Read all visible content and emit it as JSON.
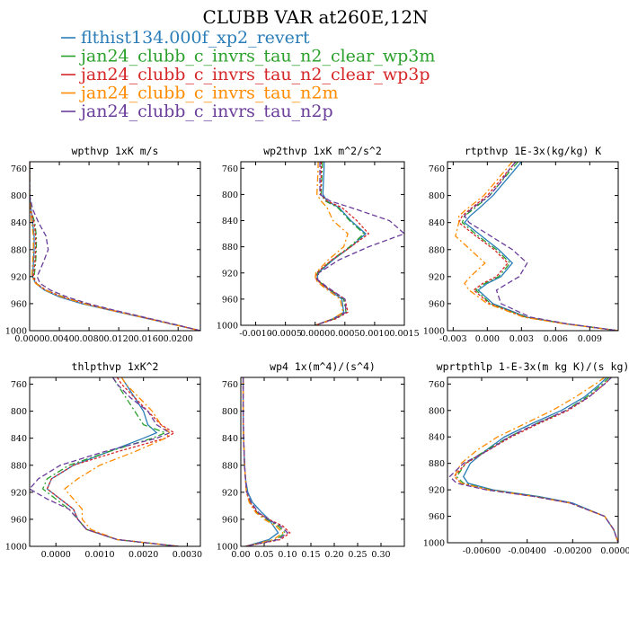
{
  "title": "CLUBB VAR at260E,12N",
  "legend": [
    {
      "name": "flthist134.000f_xp2_revert",
      "color": "#2a7db8",
      "dash": "solid"
    },
    {
      "name": "jan24_clubb_c_invrs_tau_n2_clear_wp3m",
      "color": "#2ca02c",
      "dash": "dashdot"
    },
    {
      "name": "jan24_clubb_c_invrs_tau_n2_clear_wp3p",
      "color": "#d62728",
      "dash": "dot"
    },
    {
      "name": "jan24_clubb_c_invrs_tau_n2m",
      "color": "#ff8c00",
      "dash": "dashdot"
    },
    {
      "name": "jan24_clubb_c_invrs_tau_n2p",
      "color": "#6a3d9a",
      "dash": "dash"
    }
  ],
  "chart_data": [
    {
      "type": "line",
      "title": "wpthvp  1xK m/s",
      "xlim": [
        0,
        0.023
      ],
      "ylim": [
        1000,
        750
      ],
      "y_reversed": true,
      "xticks": [
        0,
        0.004,
        0.008,
        0.012,
        0.016,
        0.02
      ],
      "xtick_labels": [
        "0.0000",
        "0.0040",
        "0.0080",
        "0.0120",
        "0.0160",
        "0.0200"
      ],
      "yticks": [
        760,
        800,
        840,
        880,
        920,
        960,
        1000
      ],
      "ytick_labels": [
        "760",
        "800",
        "840",
        "880",
        "920",
        "960",
        "1000"
      ],
      "y": [
        750,
        760,
        780,
        800,
        820,
        840,
        860,
        880,
        900,
        920,
        930,
        940,
        950,
        960,
        970,
        980,
        990,
        1000
      ],
      "series": [
        {
          "values": [
            0.0,
            0.0,
            0.0,
            0.0,
            0.0002,
            0.0004,
            0.0006,
            0.0006,
            0.0005,
            0.0004,
            0.0008,
            0.002,
            0.004,
            0.007,
            0.011,
            0.015,
            0.019,
            0.023
          ]
        },
        {
          "values": [
            0.0,
            0.0,
            0.0,
            0.0,
            0.0001,
            0.0007,
            0.0009,
            0.0009,
            0.0008,
            0.0006,
            0.0009,
            0.0022,
            0.0045,
            0.0075,
            0.0112,
            0.0152,
            0.0192,
            0.023
          ]
        },
        {
          "values": [
            0.0,
            0.0,
            0.0,
            0.0,
            0.0001,
            0.0006,
            0.0008,
            0.0008,
            0.0007,
            0.0005,
            0.0009,
            0.0022,
            0.0044,
            0.0074,
            0.0112,
            0.0152,
            0.0191,
            0.023
          ]
        },
        {
          "values": [
            0.0,
            0.0,
            0.0,
            0.0,
            0.0001,
            0.0003,
            0.0005,
            0.0005,
            0.0004,
            0.0003,
            0.0008,
            0.0021,
            0.0043,
            0.0073,
            0.0111,
            0.0151,
            0.019,
            0.023
          ]
        },
        {
          "values": [
            0.0,
            0.0,
            0.0,
            0.0,
            0.0004,
            0.0012,
            0.0022,
            0.0025,
            0.0018,
            0.001,
            0.0014,
            0.0028,
            0.005,
            0.0079,
            0.0115,
            0.0154,
            0.0193,
            0.023
          ]
        }
      ]
    },
    {
      "type": "line",
      "title": "wp2thvp  1xK m^2/s^2",
      "xlim": [
        -0.00125,
        0.0015
      ],
      "ylim": [
        1000,
        750
      ],
      "y_reversed": true,
      "xticks": [
        -0.001,
        -0.0005,
        0,
        0.0005,
        0.001,
        0.0015
      ],
      "xtick_labels": [
        "-0.0010",
        "-0.0005",
        "0.0000",
        "0.0005",
        "0.0010",
        "0.0015"
      ],
      "yticks": [
        760,
        800,
        840,
        880,
        920,
        960,
        1000
      ],
      "ytick_labels": [
        "760",
        "800",
        "840",
        "880",
        "920",
        "960",
        "1000"
      ],
      "y": [
        750,
        760,
        780,
        800,
        810,
        820,
        840,
        860,
        880,
        900,
        920,
        930,
        940,
        960,
        980,
        990,
        1000
      ],
      "series": [
        {
          "values": [
            0.00015,
            0.00015,
            0.00014,
            0.00013,
            0.0002,
            0.0004,
            0.0006,
            0.00085,
            0.0006,
            0.0003,
            5e-05,
            3e-05,
            0.00015,
            0.00045,
            0.00048,
            0.0003,
            0.0
          ]
        },
        {
          "values": [
            0.00012,
            0.00012,
            0.00011,
            0.0001,
            0.00017,
            0.00038,
            0.00058,
            0.00082,
            0.00058,
            0.00028,
            4e-05,
            3e-05,
            0.00016,
            0.00048,
            0.00052,
            0.00033,
            0.0
          ]
        },
        {
          "values": [
            0.0001,
            0.0001,
            0.0001,
            9e-05,
            0.0002,
            0.00045,
            0.0007,
            0.0009,
            0.0006,
            0.00028,
            2e-05,
            2e-05,
            0.00015,
            0.0005,
            0.00055,
            0.00035,
            0.0
          ]
        },
        {
          "values": [
            5e-05,
            5e-05,
            4e-05,
            3e-05,
            0.0001,
            0.0002,
            0.0003,
            0.00055,
            0.00048,
            0.00022,
            1e-05,
            0.0,
            0.00012,
            0.00042,
            0.00047,
            0.0003,
            0.0
          ]
        },
        {
          "values": [
            8e-05,
            8e-05,
            8e-05,
            8e-05,
            0.00025,
            0.0006,
            0.00125,
            0.0015,
            0.0009,
            0.0004,
            6e-05,
            4e-05,
            0.00018,
            0.0005,
            0.00052,
            0.00032,
            0.0
          ]
        }
      ]
    },
    {
      "type": "line",
      "title": "rtpthvp  1E-3x(kg/kg) K",
      "xlim": [
        -0.0035,
        0.0115
      ],
      "ylim": [
        1000,
        750
      ],
      "y_reversed": true,
      "xticks": [
        -0.003,
        0,
        0.003,
        0.006,
        0.009
      ],
      "xtick_labels": [
        "-0.003",
        "0.000",
        "0.003",
        "0.006",
        "0.009"
      ],
      "yticks": [
        760,
        800,
        840,
        880,
        920,
        960,
        1000
      ],
      "ytick_labels": [
        "760",
        "800",
        "840",
        "880",
        "920",
        "960",
        "1000"
      ],
      "y": [
        750,
        760,
        780,
        800,
        820,
        830,
        840,
        860,
        880,
        900,
        920,
        930,
        940,
        960,
        980,
        990,
        1000
      ],
      "series": [
        {
          "values": [
            0.003,
            0.0025,
            0.0015,
            0.0005,
            -0.0008,
            -0.0015,
            -0.002,
            -0.0005,
            0.001,
            0.0022,
            0.0012,
            0.0,
            -0.0008,
            0.0005,
            0.0035,
            0.007,
            0.0115
          ]
        },
        {
          "values": [
            0.0027,
            0.0022,
            0.0012,
            0.0002,
            -0.0012,
            -0.002,
            -0.0022,
            -0.0008,
            0.0008,
            0.002,
            0.001,
            -0.0002,
            -0.001,
            0.0003,
            0.0034,
            0.007,
            0.0115
          ]
        },
        {
          "values": [
            0.0025,
            0.002,
            0.001,
            0.0,
            -0.0015,
            -0.0022,
            -0.0025,
            -0.001,
            0.0006,
            0.0018,
            0.0008,
            -0.0004,
            -0.0012,
            0.0002,
            0.0033,
            0.0069,
            0.0115
          ]
        },
        {
          "values": [
            0.0022,
            0.0017,
            0.0007,
            -0.0003,
            -0.0018,
            -0.0025,
            -0.0025,
            -0.0028,
            -0.0015,
            -0.0002,
            -0.0015,
            -0.002,
            -0.0016,
            0.0,
            0.0032,
            0.0068,
            0.0115
          ]
        },
        {
          "values": [
            0.0025,
            0.002,
            0.0012,
            0.0002,
            -0.0014,
            -0.002,
            -0.0016,
            0.0003,
            0.0022,
            0.0035,
            0.0028,
            0.0018,
            0.0008,
            0.0012,
            0.0038,
            0.0071,
            0.0115
          ]
        }
      ]
    },
    {
      "type": "line",
      "title": "thlpthvp  1xK^2",
      "xlim": [
        -0.0006,
        0.0033
      ],
      "ylim": [
        1000,
        750
      ],
      "y_reversed": true,
      "xticks": [
        0,
        0.001,
        0.002,
        0.003
      ],
      "xtick_labels": [
        "0.0000",
        "0.0010",
        "0.0020",
        "0.0030"
      ],
      "yticks": [
        760,
        800,
        840,
        880,
        920,
        960,
        1000
      ],
      "ytick_labels": [
        "760",
        "800",
        "840",
        "880",
        "920",
        "960",
        "1000"
      ],
      "y": [
        750,
        760,
        780,
        800,
        820,
        832,
        840,
        860,
        880,
        900,
        915,
        930,
        945,
        960,
        975,
        990,
        1000
      ],
      "series": [
        {
          "values": [
            0.0015,
            0.0016,
            0.0018,
            0.002,
            0.0021,
            0.0023,
            0.002,
            0.0012,
            0.0004,
            -0.0001,
            -0.0002,
            0.0001,
            0.0004,
            0.0005,
            0.0007,
            0.0014,
            0.0028
          ]
        },
        {
          "values": [
            0.0013,
            0.0014,
            0.0016,
            0.0018,
            0.002,
            0.0025,
            0.0022,
            0.0012,
            0.0003,
            -0.0002,
            -0.0003,
            0.0,
            0.0003,
            0.0005,
            0.0007,
            0.0014,
            0.0028
          ]
        },
        {
          "values": [
            0.0014,
            0.0015,
            0.0018,
            0.0021,
            0.0024,
            0.0027,
            0.0025,
            0.0014,
            0.0004,
            -0.0001,
            -0.0002,
            0.0001,
            0.0004,
            0.0005,
            0.0007,
            0.0014,
            0.0028
          ]
        },
        {
          "values": [
            0.0015,
            0.0016,
            0.0019,
            0.0022,
            0.0024,
            0.0026,
            0.0025,
            0.0018,
            0.001,
            0.0005,
            0.0002,
            0.0004,
            0.0006,
            0.0006,
            0.0008,
            0.0014,
            0.0028
          ]
        },
        {
          "values": [
            0.0013,
            0.0014,
            0.0017,
            0.0021,
            0.0023,
            0.0026,
            0.0023,
            0.0011,
            0.0001,
            -0.0004,
            -0.0006,
            -0.0002,
            0.0003,
            0.0005,
            0.0007,
            0.0014,
            0.0028
          ]
        }
      ]
    },
    {
      "type": "line",
      "title": "wp4  1x(m^4)/(s^4)",
      "xlim": [
        0,
        0.35
      ],
      "ylim": [
        1000,
        750
      ],
      "y_reversed": true,
      "xticks": [
        0,
        0.05,
        0.1,
        0.15,
        0.2,
        0.25,
        0.3
      ],
      "xtick_labels": [
        "0.00",
        "0.05",
        "0.10",
        "0.15",
        "0.20",
        "0.25",
        "0.30"
      ],
      "yticks": [
        760,
        800,
        840,
        880,
        920,
        960,
        1000
      ],
      "ytick_labels": [
        "760",
        "800",
        "840",
        "880",
        "920",
        "960",
        "1000"
      ],
      "y": [
        750,
        760,
        800,
        840,
        880,
        900,
        920,
        935,
        950,
        960,
        970,
        980,
        990,
        1000
      ],
      "series": [
        {
          "values": [
            0.005,
            0.005,
            0.005,
            0.006,
            0.008,
            0.01,
            0.015,
            0.025,
            0.045,
            0.06,
            0.07,
            0.08,
            0.06,
            0.01
          ]
        },
        {
          "values": [
            0.005,
            0.005,
            0.005,
            0.006,
            0.008,
            0.01,
            0.012,
            0.02,
            0.035,
            0.055,
            0.08,
            0.095,
            0.075,
            0.01
          ]
        },
        {
          "values": [
            0.005,
            0.005,
            0.005,
            0.006,
            0.008,
            0.01,
            0.012,
            0.02,
            0.035,
            0.06,
            0.09,
            0.105,
            0.085,
            0.01
          ]
        },
        {
          "values": [
            0.005,
            0.005,
            0.005,
            0.006,
            0.008,
            0.01,
            0.012,
            0.018,
            0.032,
            0.05,
            0.075,
            0.09,
            0.07,
            0.01
          ]
        },
        {
          "values": [
            0.005,
            0.005,
            0.005,
            0.006,
            0.008,
            0.01,
            0.013,
            0.022,
            0.038,
            0.058,
            0.085,
            0.1,
            0.08,
            0.01
          ]
        }
      ]
    },
    {
      "type": "line",
      "title": "wprtpthlp  1-E-3x(m kg K)/(s kg)",
      "xlim": [
        -0.0075,
        0.0
      ],
      "ylim": [
        1000,
        750
      ],
      "y_reversed": true,
      "xticks": [
        -0.006,
        -0.004,
        -0.002,
        0
      ],
      "xtick_labels": [
        "-0.00600",
        "-0.00400",
        "-0.00200",
        "0.00000"
      ],
      "yticks": [
        760,
        800,
        840,
        880,
        920,
        960,
        1000
      ],
      "ytick_labels": [
        "760",
        "800",
        "840",
        "880",
        "920",
        "960",
        "1000"
      ],
      "y": [
        750,
        760,
        780,
        800,
        820,
        840,
        860,
        880,
        900,
        910,
        920,
        930,
        940,
        960,
        980,
        1000
      ],
      "series": [
        {
          "values": [
            -0.0005,
            -0.0008,
            -0.0015,
            -0.0025,
            -0.0038,
            -0.005,
            -0.0058,
            -0.0065,
            -0.0068,
            -0.0066,
            -0.0055,
            -0.0035,
            -0.002,
            -0.0006,
            -0.0002,
            0.0
          ]
        },
        {
          "values": [
            -0.0004,
            -0.0007,
            -0.0014,
            -0.0023,
            -0.0036,
            -0.0048,
            -0.0058,
            -0.0067,
            -0.0071,
            -0.0068,
            -0.0056,
            -0.0036,
            -0.0021,
            -0.0006,
            -0.0002,
            0.0
          ]
        },
        {
          "values": [
            -0.0003,
            -0.0006,
            -0.0013,
            -0.0022,
            -0.0035,
            -0.0047,
            -0.0057,
            -0.0067,
            -0.0072,
            -0.0069,
            -0.0057,
            -0.0037,
            -0.0021,
            -0.0006,
            -0.0002,
            0.0
          ]
        },
        {
          "values": [
            -0.0006,
            -0.001,
            -0.0019,
            -0.0029,
            -0.0041,
            -0.0053,
            -0.0062,
            -0.0069,
            -0.0072,
            -0.0069,
            -0.0057,
            -0.0037,
            -0.0021,
            -0.0006,
            -0.0002,
            0.0
          ]
        },
        {
          "values": [
            -0.0003,
            -0.0006,
            -0.0013,
            -0.0023,
            -0.0036,
            -0.0048,
            -0.0057,
            -0.0068,
            -0.0074,
            -0.0071,
            -0.0058,
            -0.0037,
            -0.0021,
            -0.0006,
            -0.0002,
            0.0
          ]
        }
      ]
    }
  ]
}
